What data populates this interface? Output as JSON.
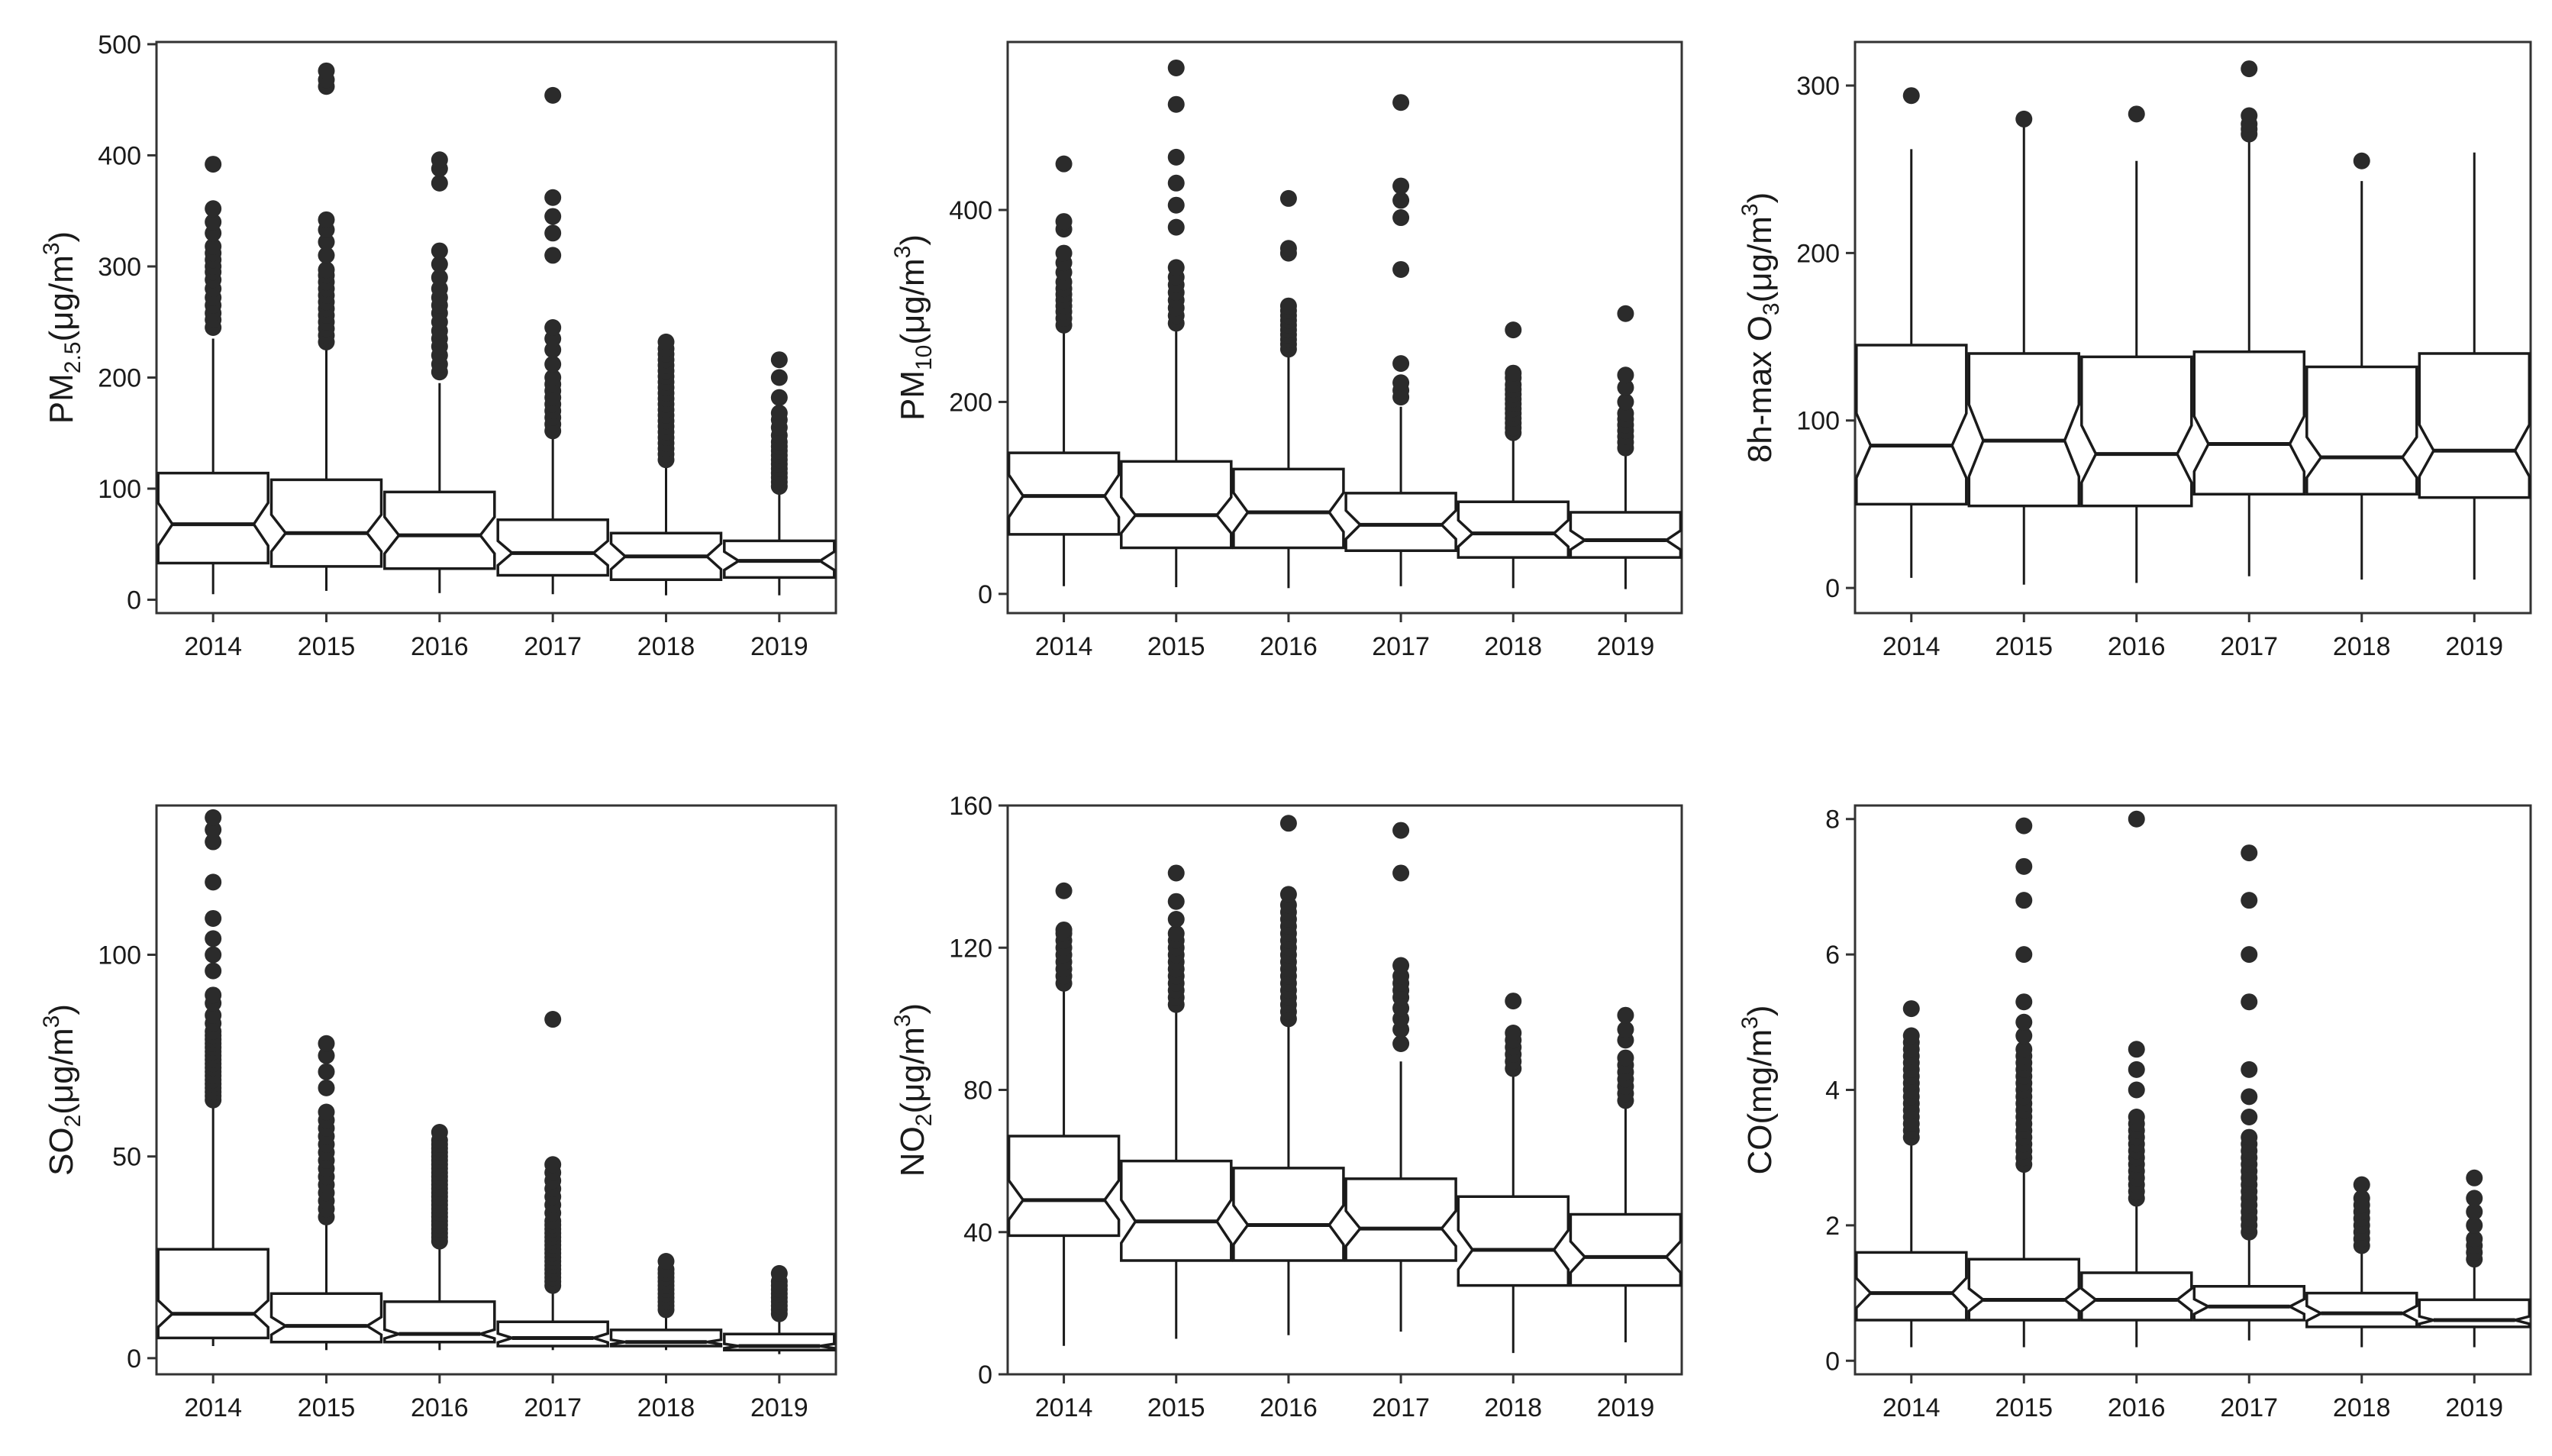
{
  "chart_data": [
    {
      "type": "box",
      "ylabel": {
        "main": "PM",
        "sub": "2.5",
        "unit_pre": "(μg/m",
        "sup": "3",
        "unit_post": ")"
      },
      "categories": [
        "2014",
        "2015",
        "2016",
        "2017",
        "2018",
        "2019"
      ],
      "ylim": [
        -12,
        502
      ],
      "yticks": [
        0,
        100,
        200,
        300,
        400,
        500
      ],
      "boxes": [
        {
          "category": "2014",
          "whisker_low": 5,
          "q1": 33,
          "median": 68,
          "q3": 114,
          "whisker_high": 235,
          "outliers": [
            245,
            252,
            258,
            265,
            272,
            280,
            288,
            295,
            300,
            306,
            312,
            318,
            330,
            340,
            352,
            392
          ]
        },
        {
          "category": "2015",
          "whisker_low": 8,
          "q1": 30,
          "median": 60,
          "q3": 108,
          "whisker_high": 228,
          "outliers": [
            232,
            238,
            244,
            250,
            256,
            262,
            268,
            274,
            280,
            286,
            292,
            297,
            310,
            322,
            333,
            342,
            462,
            468,
            476
          ]
        },
        {
          "category": "2016",
          "whisker_low": 6,
          "q1": 28,
          "median": 58,
          "q3": 97,
          "whisker_high": 195,
          "outliers": [
            205,
            212,
            220,
            228,
            235,
            242,
            250,
            258,
            265,
            272,
            280,
            290,
            302,
            314,
            375,
            388,
            396
          ]
        },
        {
          "category": "2017",
          "whisker_low": 5,
          "q1": 22,
          "median": 42,
          "q3": 72,
          "whisker_high": 150,
          "outliers": [
            152,
            158,
            164,
            170,
            176,
            182,
            188,
            194,
            200,
            212,
            225,
            235,
            245,
            310,
            330,
            345,
            362,
            454
          ]
        },
        {
          "category": "2018",
          "whisker_low": 4,
          "q1": 18,
          "median": 39,
          "q3": 60,
          "whisker_high": 125,
          "outliers": [
            126,
            131,
            136,
            141,
            146,
            151,
            156,
            161,
            166,
            171,
            176,
            181,
            186,
            191,
            196,
            201,
            206,
            211,
            216,
            221,
            226,
            232
          ]
        },
        {
          "category": "2019",
          "whisker_low": 4,
          "q1": 20,
          "median": 35,
          "q3": 53,
          "whisker_high": 100,
          "outliers": [
            102,
            106,
            110,
            114,
            118,
            122,
            126,
            130,
            134,
            138,
            142,
            148,
            155,
            162,
            168,
            182,
            200,
            216
          ]
        }
      ]
    },
    {
      "type": "box",
      "ylabel": {
        "main": "PM",
        "sub": "10",
        "unit_pre": "(μg/m",
        "sup": "3",
        "unit_post": ")"
      },
      "categories": [
        "2014",
        "2015",
        "2016",
        "2017",
        "2018",
        "2019"
      ],
      "ylim": [
        -20,
        575
      ],
      "yticks": [
        0,
        200,
        400
      ],
      "boxes": [
        {
          "category": "2014",
          "whisker_low": 8,
          "q1": 62,
          "median": 102,
          "q3": 147,
          "whisker_high": 275,
          "outliers": [
            280,
            287,
            294,
            300,
            306,
            312,
            318,
            325,
            335,
            345,
            355,
            380,
            388,
            448
          ]
        },
        {
          "category": "2015",
          "whisker_low": 7,
          "q1": 48,
          "median": 82,
          "q3": 138,
          "whisker_high": 275,
          "outliers": [
            282,
            290,
            298,
            306,
            314,
            322,
            330,
            340,
            382,
            405,
            428,
            455,
            510,
            548
          ]
        },
        {
          "category": "2016",
          "whisker_low": 6,
          "q1": 48,
          "median": 85,
          "q3": 130,
          "whisker_high": 250,
          "outliers": [
            255,
            260,
            265,
            270,
            275,
            280,
            285,
            290,
            295,
            300,
            355,
            360,
            412
          ]
        },
        {
          "category": "2017",
          "whisker_low": 8,
          "q1": 45,
          "median": 72,
          "q3": 105,
          "whisker_high": 195,
          "outliers": [
            205,
            212,
            220,
            240,
            338,
            392,
            410,
            425,
            512
          ]
        },
        {
          "category": "2018",
          "whisker_low": 6,
          "q1": 38,
          "median": 63,
          "q3": 96,
          "whisker_high": 165,
          "outliers": [
            168,
            173,
            178,
            183,
            188,
            193,
            198,
            203,
            208,
            213,
            218,
            225,
            230,
            275
          ]
        },
        {
          "category": "2019",
          "whisker_low": 5,
          "q1": 38,
          "median": 56,
          "q3": 85,
          "whisker_high": 150,
          "outliers": [
            152,
            158,
            164,
            170,
            176,
            182,
            188,
            200,
            215,
            228,
            292
          ]
        }
      ]
    },
    {
      "type": "box",
      "ylabel": {
        "main": "8h-max O",
        "sub": "3",
        "unit_pre": "(μg/m",
        "sup": "3",
        "unit_post": ")"
      },
      "categories": [
        "2014",
        "2015",
        "2016",
        "2017",
        "2018",
        "2019"
      ],
      "ylim": [
        -15,
        326
      ],
      "yticks": [
        0,
        100,
        200,
        300
      ],
      "boxes": [
        {
          "category": "2014",
          "whisker_low": 6,
          "q1": 50,
          "median": 85,
          "q3": 145,
          "whisker_high": 262,
          "outliers": [
            294
          ]
        },
        {
          "category": "2015",
          "whisker_low": 2,
          "q1": 49,
          "median": 88,
          "q3": 140,
          "whisker_high": 276,
          "outliers": [
            280
          ]
        },
        {
          "category": "2016",
          "whisker_low": 3,
          "q1": 49,
          "median": 80,
          "q3": 138,
          "whisker_high": 255,
          "outliers": [
            283
          ]
        },
        {
          "category": "2017",
          "whisker_low": 7,
          "q1": 56,
          "median": 86,
          "q3": 141,
          "whisker_high": 268,
          "outliers": [
            271,
            274,
            277,
            282,
            310
          ]
        },
        {
          "category": "2018",
          "whisker_low": 5,
          "q1": 56,
          "median": 78,
          "q3": 132,
          "whisker_high": 243,
          "outliers": [
            255
          ]
        },
        {
          "category": "2019",
          "whisker_low": 5,
          "q1": 54,
          "median": 82,
          "q3": 140,
          "whisker_high": 260,
          "outliers": []
        }
      ]
    },
    {
      "type": "box",
      "ylabel": {
        "main": "SO",
        "sub": "2",
        "unit_pre": "(μg/m",
        "sup": "3",
        "unit_post": ")"
      },
      "categories": [
        "2014",
        "2015",
        "2016",
        "2017",
        "2018",
        "2019"
      ],
      "ylim": [
        -4,
        137
      ],
      "yticks": [
        0,
        50,
        100
      ],
      "boxes": [
        {
          "category": "2014",
          "whisker_low": 3,
          "q1": 5,
          "median": 11,
          "q3": 27,
          "whisker_high": 63,
          "outliers": [
            64,
            65,
            66,
            67,
            68,
            69,
            70,
            71,
            72,
            73,
            74,
            75,
            76,
            77,
            78,
            79,
            80,
            81,
            83,
            85,
            88,
            90,
            96,
            100,
            104,
            109,
            118,
            128,
            131,
            134
          ]
        },
        {
          "category": "2015",
          "whisker_low": 2,
          "q1": 4,
          "median": 8,
          "q3": 16,
          "whisker_high": 34,
          "outliers": [
            35,
            37,
            39,
            41,
            43,
            45,
            47,
            49,
            51,
            53,
            55,
            57,
            59,
            61,
            67,
            71,
            75,
            78
          ]
        },
        {
          "category": "2016",
          "whisker_low": 2,
          "q1": 4,
          "median": 6,
          "q3": 14,
          "whisker_high": 28,
          "outliers": [
            29,
            30,
            31,
            32,
            33,
            34,
            35,
            36,
            37,
            38,
            39,
            40,
            41,
            42,
            43,
            44,
            45,
            46,
            47,
            48,
            49,
            50,
            51,
            52,
            53,
            54,
            56
          ]
        },
        {
          "category": "2017",
          "whisker_low": 2,
          "q1": 3,
          "median": 5,
          "q3": 9,
          "whisker_high": 17,
          "outliers": [
            18,
            19,
            20,
            21,
            22,
            23,
            24,
            25,
            26,
            27,
            28,
            29,
            30,
            31,
            32,
            33,
            34,
            36,
            38,
            40,
            42,
            44,
            46,
            48,
            84
          ]
        },
        {
          "category": "2018",
          "whisker_low": 2,
          "q1": 3,
          "median": 4,
          "q3": 7,
          "whisker_high": 11,
          "outliers": [
            12,
            13,
            14,
            15,
            16,
            17,
            18,
            19,
            20,
            21,
            22,
            24
          ]
        },
        {
          "category": "2019",
          "whisker_low": 1,
          "q1": 2,
          "median": 3,
          "q3": 6,
          "whisker_high": 10,
          "outliers": [
            11,
            12,
            13,
            14,
            15,
            16,
            17,
            18,
            19,
            21
          ]
        }
      ]
    },
    {
      "type": "box",
      "ylabel": {
        "main": "NO",
        "sub": "2",
        "unit_pre": "(μg/m",
        "sup": "3",
        "unit_post": ")"
      },
      "categories": [
        "2014",
        "2015",
        "2016",
        "2017",
        "2018",
        "2019"
      ],
      "ylim": [
        0,
        160
      ],
      "yticks": [
        0,
        40,
        80,
        120,
        160
      ],
      "boxes": [
        {
          "category": "2014",
          "whisker_low": 8,
          "q1": 39,
          "median": 49,
          "q3": 67,
          "whisker_high": 108,
          "outliers": [
            110,
            112,
            114,
            116,
            118,
            120,
            122,
            124,
            125,
            136
          ]
        },
        {
          "category": "2015",
          "whisker_low": 10,
          "q1": 32,
          "median": 43,
          "q3": 60,
          "whisker_high": 102,
          "outliers": [
            104,
            106,
            108,
            110,
            112,
            114,
            116,
            118,
            120,
            122,
            124,
            128,
            133,
            141
          ]
        },
        {
          "category": "2016",
          "whisker_low": 11,
          "q1": 32,
          "median": 42,
          "q3": 58,
          "whisker_high": 98,
          "outliers": [
            100,
            102,
            104,
            106,
            108,
            110,
            112,
            114,
            116,
            118,
            120,
            122,
            124,
            126,
            128,
            130,
            132,
            135,
            155
          ]
        },
        {
          "category": "2017",
          "whisker_low": 12,
          "q1": 32,
          "median": 41,
          "q3": 55,
          "whisker_high": 88,
          "outliers": [
            93,
            97,
            100,
            103,
            106,
            108,
            110,
            112,
            115,
            141,
            153
          ]
        },
        {
          "category": "2018",
          "whisker_low": 6,
          "q1": 25,
          "median": 35,
          "q3": 50,
          "whisker_high": 85,
          "outliers": [
            86,
            88,
            90,
            92,
            94,
            96,
            105
          ]
        },
        {
          "category": "2019",
          "whisker_low": 9,
          "q1": 25,
          "median": 33,
          "q3": 45,
          "whisker_high": 75,
          "outliers": [
            77,
            79,
            81,
            83,
            85,
            87,
            89,
            94,
            97,
            101
          ]
        }
      ]
    },
    {
      "type": "box",
      "ylabel": {
        "main": "CO(mg/m",
        "sub": "",
        "unit_pre": "",
        "sup": "3",
        "unit_post": ")"
      },
      "categories": [
        "2014",
        "2015",
        "2016",
        "2017",
        "2018",
        "2019"
      ],
      "ylim": [
        -0.2,
        8.2
      ],
      "yticks": [
        0,
        2,
        4,
        6,
        8
      ],
      "boxes": [
        {
          "category": "2014",
          "whisker_low": 0.2,
          "q1": 0.6,
          "median": 1.0,
          "q3": 1.6,
          "whisker_high": 3.2,
          "outliers": [
            3.3,
            3.4,
            3.5,
            3.6,
            3.7,
            3.8,
            3.9,
            4.0,
            4.1,
            4.2,
            4.3,
            4.4,
            4.5,
            4.6,
            4.7,
            4.8,
            5.2
          ]
        },
        {
          "category": "2015",
          "whisker_low": 0.2,
          "q1": 0.6,
          "median": 0.9,
          "q3": 1.5,
          "whisker_high": 2.8,
          "outliers": [
            2.9,
            3.0,
            3.1,
            3.2,
            3.3,
            3.4,
            3.5,
            3.6,
            3.7,
            3.8,
            3.9,
            4.0,
            4.1,
            4.2,
            4.3,
            4.4,
            4.5,
            4.6,
            4.8,
            5.0,
            5.3,
            6.0,
            6.8,
            7.3,
            7.9
          ]
        },
        {
          "category": "2016",
          "whisker_low": 0.2,
          "q1": 0.6,
          "median": 0.9,
          "q3": 1.3,
          "whisker_high": 2.3,
          "outliers": [
            2.4,
            2.5,
            2.6,
            2.7,
            2.8,
            2.9,
            3.0,
            3.1,
            3.2,
            3.3,
            3.4,
            3.5,
            3.6,
            4.0,
            4.3,
            4.6,
            8.0
          ]
        },
        {
          "category": "2017",
          "whisker_low": 0.3,
          "q1": 0.6,
          "median": 0.8,
          "q3": 1.1,
          "whisker_high": 1.8,
          "outliers": [
            1.9,
            2.0,
            2.1,
            2.2,
            2.3,
            2.4,
            2.5,
            2.6,
            2.7,
            2.8,
            2.9,
            3.0,
            3.1,
            3.2,
            3.3,
            3.6,
            3.9,
            4.3,
            5.3,
            6.0,
            6.8,
            7.5
          ]
        },
        {
          "category": "2018",
          "whisker_low": 0.2,
          "q1": 0.5,
          "median": 0.7,
          "q3": 1.0,
          "whisker_high": 1.6,
          "outliers": [
            1.7,
            1.8,
            1.9,
            2.0,
            2.1,
            2.2,
            2.3,
            2.4,
            2.6
          ]
        },
        {
          "category": "2019",
          "whisker_low": 0.2,
          "q1": 0.5,
          "median": 0.6,
          "q3": 0.9,
          "whisker_high": 1.4,
          "outliers": [
            1.5,
            1.6,
            1.7,
            1.8,
            2.0,
            2.2,
            2.4,
            2.7
          ]
        }
      ]
    }
  ]
}
